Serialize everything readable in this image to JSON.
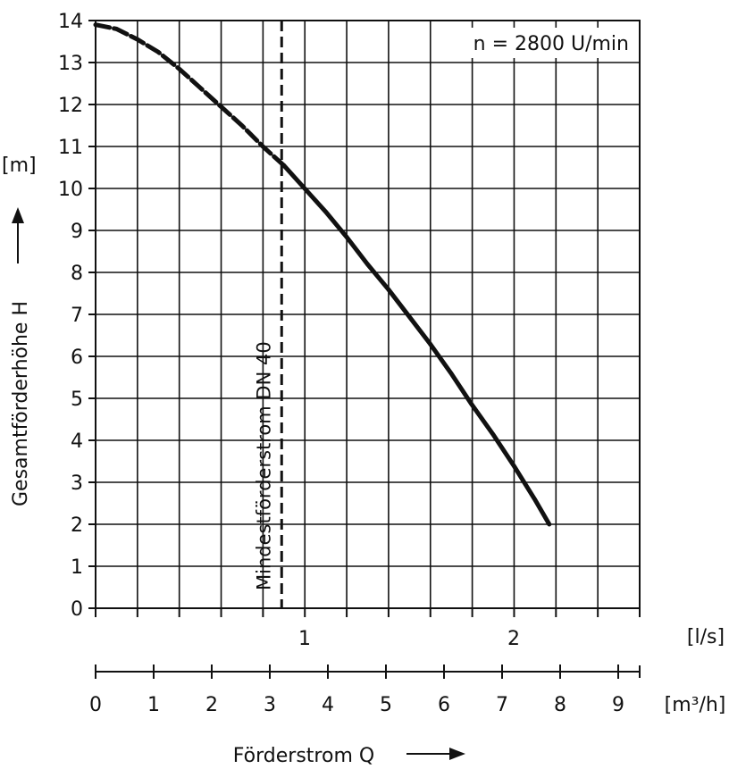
{
  "chart_data": {
    "type": "line",
    "annotation": "n = 2800 U/min",
    "ylabel": "Gesamtförderhöhe H",
    "yunit": "[m]",
    "xlabel": "Förderstrom Q",
    "xunit_ls": "[l/s]",
    "xunit_m3h": "[m³/h]",
    "ylim": [
      0,
      14
    ],
    "xlim_ls": [
      0,
      2.6
    ],
    "x_ticks_ls": [
      1,
      2
    ],
    "x_ticks_m3h": [
      0,
      1,
      2,
      3,
      4,
      5,
      6,
      7,
      8,
      9
    ],
    "y_ticks": [
      0,
      1,
      2,
      3,
      4,
      5,
      6,
      7,
      8,
      9,
      10,
      11,
      12,
      13,
      14
    ],
    "grid": true,
    "min_flow_line": {
      "label": "Mindestförderstrom DN 40",
      "x_ls": 0.89
    },
    "series": [
      {
        "x_ls": [
          0,
          0.1,
          0.2,
          0.3,
          0.4,
          0.5,
          0.6,
          0.7,
          0.8,
          0.9,
          1.0,
          1.1,
          1.2,
          1.3,
          1.4,
          1.5,
          1.6,
          1.7,
          1.8,
          1.9,
          2.0,
          2.1,
          2.17
        ],
        "y_m": [
          13.9,
          13.8,
          13.55,
          13.25,
          12.85,
          12.4,
          11.95,
          11.5,
          11.0,
          10.55,
          10.0,
          9.45,
          8.85,
          8.2,
          7.6,
          6.95,
          6.3,
          5.6,
          4.85,
          4.15,
          3.4,
          2.6,
          2.0
        ],
        "dashed_until_x_ls": 0.9
      }
    ]
  }
}
